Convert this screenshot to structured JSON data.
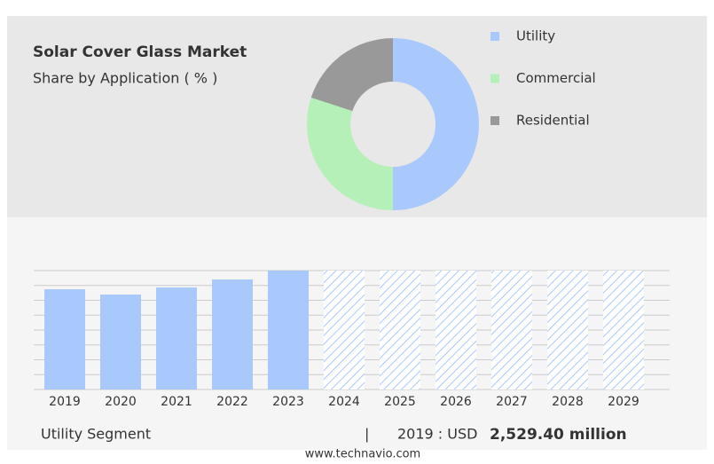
{
  "chart_data": [
    {
      "type": "pie",
      "title": "Solar Cover Glass Market",
      "subtitle": "Share by Application ( % )",
      "categories": [
        "Utility",
        "Commercial",
        "Residential"
      ],
      "values": [
        50,
        30,
        20
      ],
      "colors": [
        "#a9c8fb",
        "#b5f0b9",
        "#999999"
      ],
      "donut": true
    },
    {
      "type": "bar",
      "categories": [
        "2019",
        "2020",
        "2021",
        "2022",
        "2023",
        "2024",
        "2025",
        "2026",
        "2027",
        "2028",
        "2029"
      ],
      "values": [
        2529.4,
        2395,
        2574,
        2776,
        3000,
        null,
        null,
        null,
        null,
        null,
        null
      ],
      "color": "#a9c8fb",
      "ylim": [
        0,
        3000
      ],
      "yticks": [
        0,
        375,
        750,
        1125,
        1500,
        1875,
        2250,
        2625,
        3000
      ],
      "grid": true
    }
  ],
  "footer": {
    "segment": "Utility Segment",
    "separator": "|",
    "prefix": "2019 : USD",
    "value": "2,529.40 million",
    "url": "www.technavio.com"
  }
}
